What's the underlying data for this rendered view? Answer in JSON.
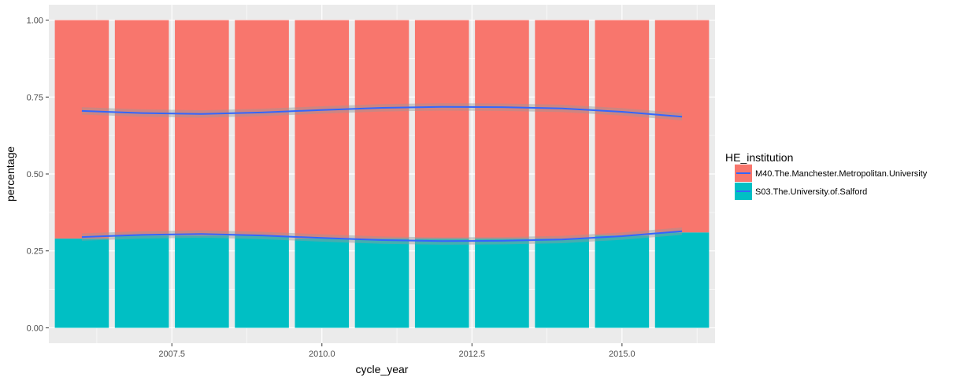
{
  "chart_data": {
    "type": "bar",
    "stacked": true,
    "xlabel": "cycle_year",
    "ylabel": "percentage",
    "xlim": [
      2005.45,
      2016.55
    ],
    "ylim": [
      -0.05,
      1.05
    ],
    "x_ticks": [
      2007.5,
      2010.0,
      2012.5,
      2015.0
    ],
    "x_tick_labels": [
      "2007.5",
      "2010.0",
      "2012.5",
      "2015.0"
    ],
    "y_ticks": [
      0,
      0.25,
      0.5,
      0.75,
      1.0
    ],
    "y_tick_labels": [
      "0.00",
      "0.25",
      "0.50",
      "0.75",
      "1.00"
    ],
    "grid": true,
    "legend": {
      "title": "HE_institution",
      "position": "right",
      "entries": [
        "M40.The.Manchester.Metropolitan.University",
        "S03.The.University.of.Salford"
      ]
    },
    "x": [
      2006,
      2007,
      2008,
      2009,
      2010,
      2011,
      2012,
      2013,
      2014,
      2015,
      2016
    ],
    "bar_width_years": 0.9,
    "series": [
      {
        "name": "S03.The.University.of.Salford",
        "color": "#00BFC4",
        "values": [
          0.29,
          0.3,
          0.3,
          0.3,
          0.29,
          0.29,
          0.29,
          0.29,
          0.29,
          0.3,
          0.31
        ]
      },
      {
        "name": "M40.The.Manchester.Metropolitan.University",
        "color": "#F8766D",
        "values": [
          0.71,
          0.7,
          0.7,
          0.7,
          0.71,
          0.71,
          0.71,
          0.71,
          0.71,
          0.7,
          0.69
        ]
      }
    ],
    "smooth_lines": [
      {
        "name": "M40.The.Manchester.Metropolitan.University",
        "color": "#3366FF",
        "x": [
          2006,
          2007,
          2008,
          2009,
          2010,
          2011,
          2012,
          2013,
          2014,
          2015,
          2016
        ],
        "y": [
          0.705,
          0.698,
          0.695,
          0.7,
          0.708,
          0.715,
          0.718,
          0.717,
          0.713,
          0.702,
          0.686
        ]
      },
      {
        "name": "S03.The.University.of.Salford",
        "color": "#3366FF",
        "x": [
          2006,
          2007,
          2008,
          2009,
          2010,
          2011,
          2012,
          2013,
          2014,
          2015,
          2016
        ],
        "y": [
          0.295,
          0.302,
          0.305,
          0.3,
          0.292,
          0.285,
          0.282,
          0.283,
          0.287,
          0.298,
          0.314
        ]
      }
    ],
    "colors": {
      "panel_background": "#EBEBEB",
      "grid": "#FFFFFF",
      "ribbon": "#999999",
      "smooth_line": "#3366FF"
    }
  }
}
